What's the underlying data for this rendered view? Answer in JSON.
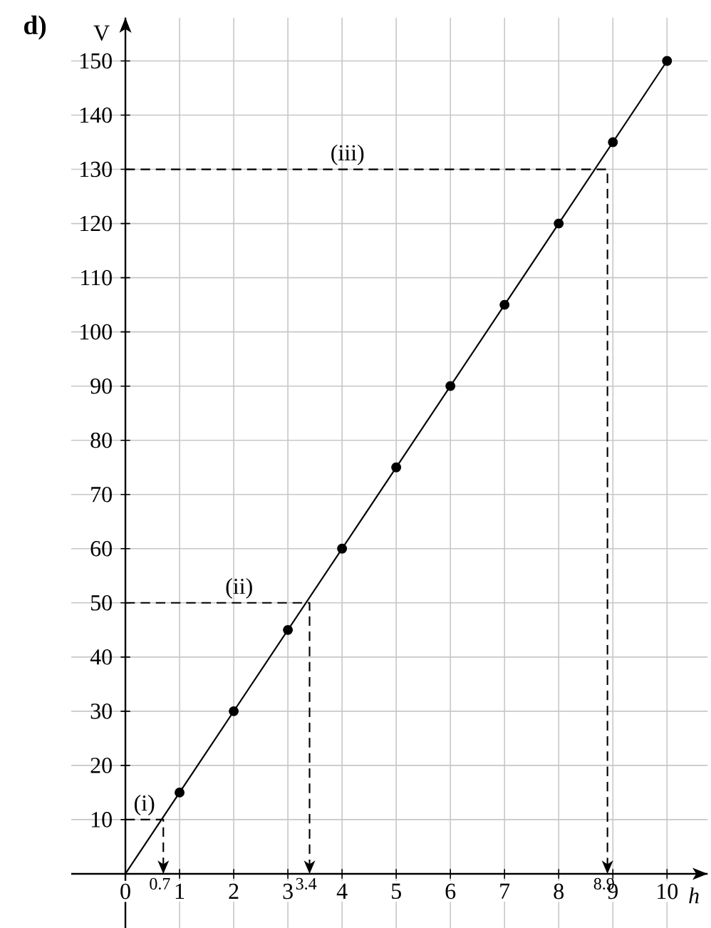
{
  "chart_data": {
    "type": "line",
    "title": "d)",
    "xlabel": "h",
    "ylabel": "V",
    "xlim": [
      -1,
      10.75
    ],
    "ylim": [
      -10,
      158
    ],
    "xticks": [
      0,
      1,
      2,
      3,
      4,
      5,
      6,
      7,
      8,
      9,
      10
    ],
    "yticks": [
      10,
      20,
      30,
      40,
      50,
      60,
      70,
      80,
      90,
      100,
      110,
      120,
      130,
      140,
      150
    ],
    "grid": true,
    "series": [
      {
        "color": "#000000",
        "x": [
          0,
          10
        ],
        "values": [
          0,
          150
        ]
      },
      {
        "type": "scatter",
        "marker": "circle",
        "color": "#000000",
        "x": [
          1,
          2,
          3,
          4,
          5,
          6,
          7,
          8,
          9,
          10
        ],
        "values": [
          15,
          30,
          45,
          60,
          75,
          90,
          105,
          120,
          135,
          150
        ]
      },
      {
        "type": "line",
        "line_style": "dashed",
        "color": "#000000",
        "x": [
          0,
          0.7,
          0.7
        ],
        "values": [
          10,
          10,
          0
        ]
      },
      {
        "type": "line",
        "line_style": "dashed",
        "color": "#000000",
        "x": [
          0,
          3.4,
          3.4
        ],
        "values": [
          50,
          50,
          0
        ]
      },
      {
        "type": "line",
        "line_style": "dashed",
        "color": "#000000",
        "x": [
          0,
          8.9,
          8.9
        ],
        "values": [
          130,
          130,
          0
        ]
      }
    ],
    "annotations": [
      {
        "text": "(i)",
        "x": 0.35,
        "y": 10
      },
      {
        "text": "(ii)",
        "x": 2.1,
        "y": 50
      },
      {
        "text": "(iii)",
        "x": 4.1,
        "y": 130
      },
      {
        "text": "0.7",
        "x": 0.7,
        "y": 0
      },
      {
        "text": "3.4",
        "x": 3.4,
        "y": 0
      },
      {
        "text": "8.9",
        "x": 8.9,
        "y": 0
      }
    ]
  }
}
